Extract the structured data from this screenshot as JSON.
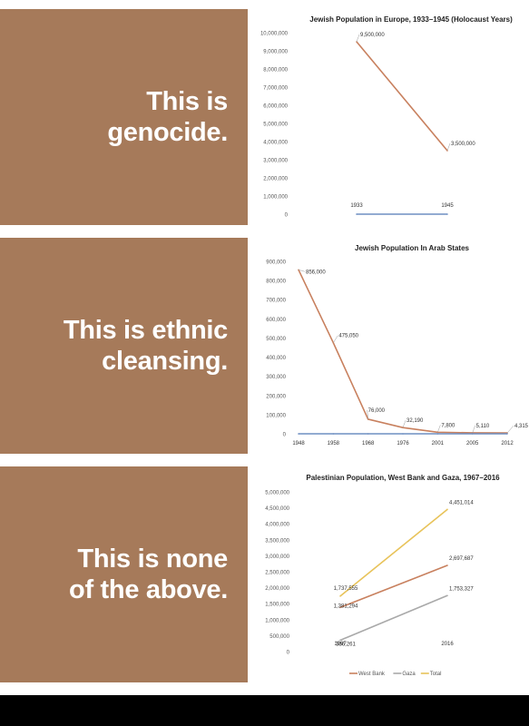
{
  "panels": [
    {
      "slogan": [
        "This is",
        "genocide."
      ],
      "chart_data": {
        "type": "line",
        "title": "Jewish Population in Europe, 1933–1945 (Holocaust Years)",
        "categories": [
          "1933",
          "1945"
        ],
        "series": [
          {
            "name": "",
            "values": [
              9500000,
              3500000
            ],
            "color": "#c8805e"
          },
          {
            "name": "",
            "values": [
              0,
              0
            ],
            "color": "#6f8fc2"
          }
        ],
        "data_labels": [
          "9,500,000",
          "3,500,000"
        ],
        "yticks": [
          0,
          1000000,
          2000000,
          3000000,
          4000000,
          5000000,
          6000000,
          7000000,
          8000000,
          9000000,
          10000000
        ],
        "ytick_labels": [
          "0",
          "1,000,000",
          "2,000,000",
          "3,000,000",
          "4,000,000",
          "5,000,000",
          "6,000,000",
          "7,000,000",
          "8,000,000",
          "9,000,000",
          "10,000,000"
        ],
        "ylim": [
          0,
          10000000
        ],
        "grid": false,
        "legend": "none"
      }
    },
    {
      "slogan": [
        "This is ethnic",
        "cleansing."
      ],
      "chart_data": {
        "type": "line",
        "title": "Jewish Population  In Arab States",
        "categories": [
          "1948",
          "1958",
          "1968",
          "1976",
          "2001",
          "2005",
          "2012"
        ],
        "series": [
          {
            "name": "",
            "values": [
              856000,
              475050,
              76000,
              32190,
              7800,
              5110,
              4315
            ],
            "color": "#c8805e"
          },
          {
            "name": "",
            "values": [
              0,
              0,
              0,
              0,
              0,
              0,
              0
            ],
            "color": "#6f8fc2"
          }
        ],
        "data_labels": [
          "856,000",
          "475,050",
          "76,000",
          "32,190",
          "7,800",
          "5,110",
          "4,315"
        ],
        "yticks": [
          0,
          100000,
          200000,
          300000,
          400000,
          500000,
          600000,
          700000,
          800000,
          900000
        ],
        "ytick_labels": [
          "0",
          "100,000",
          "200,000",
          "300,000",
          "400,000",
          "500,000",
          "600,000",
          "700,000",
          "800,000",
          "900,000"
        ],
        "ylim": [
          0,
          900000
        ],
        "grid": false,
        "legend": "none"
      }
    },
    {
      "slogan": [
        "This is none",
        "of the above."
      ],
      "chart_data": {
        "type": "line",
        "title": "Palestinian Population, West Bank and Gaza, 1967–2016",
        "categories": [
          "1967",
          "2016"
        ],
        "series": [
          {
            "name": "West Bank",
            "values": [
              1381294,
              2697687
            ],
            "labels": [
              "1,381,294",
              "2,697,687"
            ],
            "color": "#c8805e"
          },
          {
            "name": "Gaza",
            "values": [
              356261,
              1753327
            ],
            "labels": [
              "356,261",
              "1,753,327"
            ],
            "color": "#a9a9a9"
          },
          {
            "name": "Total",
            "values": [
              1737555,
              4451014
            ],
            "labels": [
              "1,737,555",
              "4,451,014"
            ],
            "color": "#e8c35a"
          }
        ],
        "yticks": [
          0,
          500000,
          1000000,
          1500000,
          2000000,
          2500000,
          3000000,
          3500000,
          4000000,
          4500000,
          5000000
        ],
        "ytick_labels": [
          "0",
          "500,000",
          "1,000,000",
          "1,500,000",
          "2,000,000",
          "2,500,000",
          "3,000,000",
          "3,500,000",
          "4,000,000",
          "4,500,000",
          "5,000,000"
        ],
        "ylim": [
          0,
          5000000
        ],
        "grid": false,
        "legend": "bottom"
      }
    }
  ]
}
